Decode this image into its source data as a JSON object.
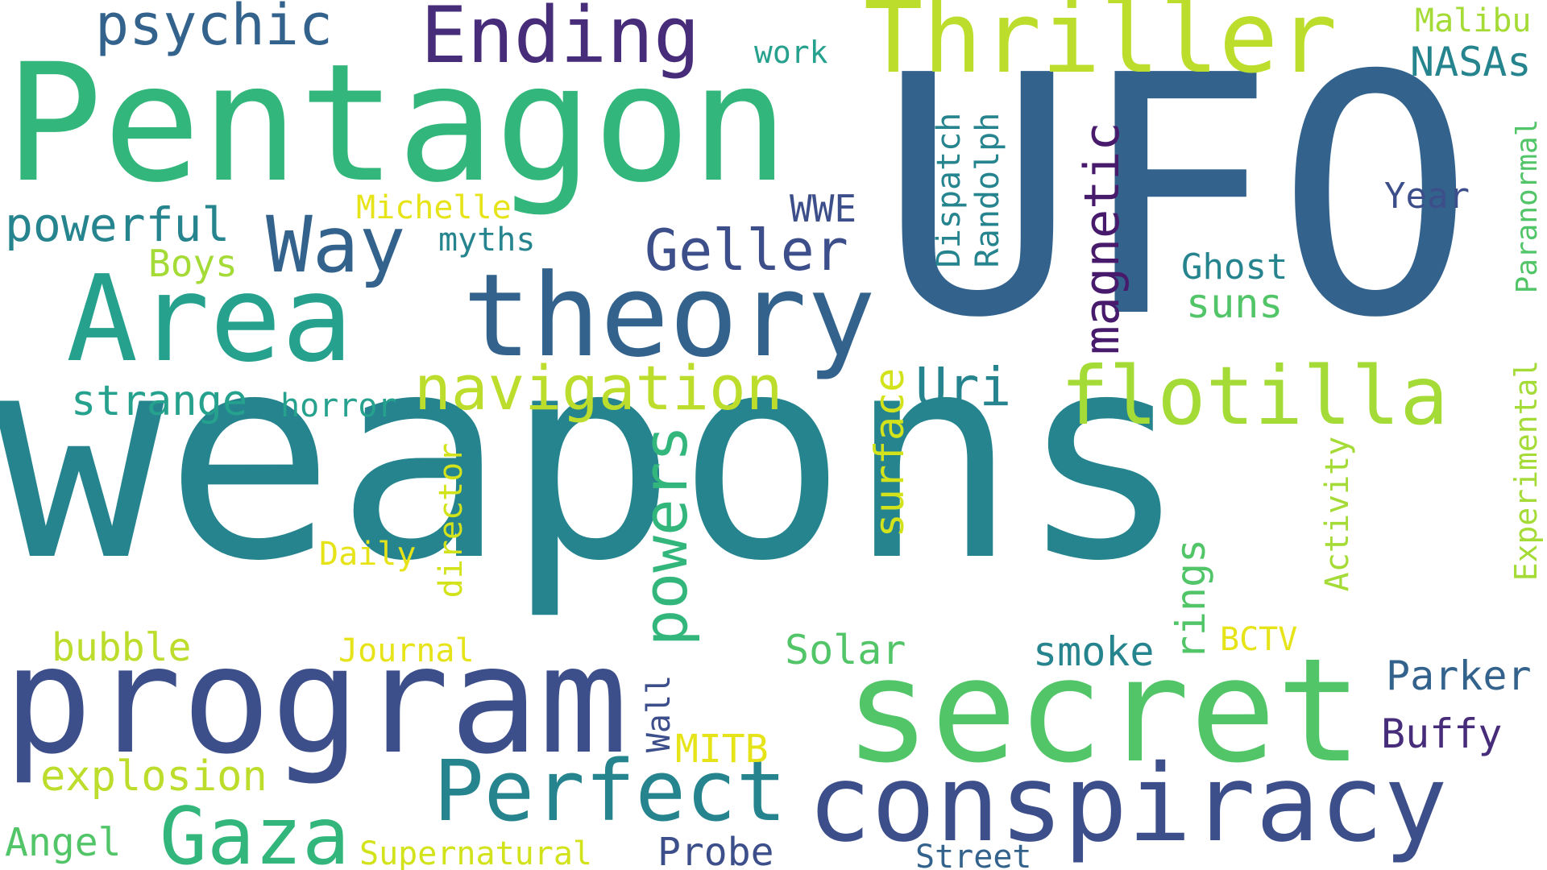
{
  "cloud": {
    "words": {
      "weapons": "weapons",
      "ufo": "UFO",
      "pentagon": "Pentagon",
      "program": "program",
      "secret": "secret",
      "conspiracy": "conspiracy",
      "area": "Area",
      "theory": "theory",
      "thriller": "Thriller",
      "perfect": "Perfect",
      "gaza": "Gaza",
      "flotilla": "flotilla",
      "ending": "Ending",
      "navigation": "navigation",
      "way": "Way",
      "psychic": "psychic",
      "powers": "powers",
      "magnetic": "magnetic",
      "geller": "Geller",
      "uri": "Uri",
      "powerful": "powerful",
      "strange": "strange",
      "surface": "surface",
      "rings": "rings",
      "parker": "Parker",
      "buffy": "Buffy",
      "solar": "Solar",
      "smoke": "smoke",
      "explosion": "explosion",
      "bubble": "bubble",
      "angel": "Angel",
      "supernatural": "Supernatural",
      "probe": "Probe",
      "street": "Street",
      "mitb": "MITB",
      "journal": "Journal",
      "daily": "Daily",
      "director": "director",
      "wall": "Wall",
      "dispatch": "Dispatch",
      "randolph": "Randolph",
      "ghost": "Ghost",
      "suns": "suns",
      "year": "Year",
      "nasas": "NASAs",
      "malibu": "Malibu",
      "paranormal": "Paranormal",
      "experimental": "Experimental",
      "activity": "Activity",
      "bctv": "BCTV",
      "wwe": "WWE",
      "myths": "myths",
      "michelle": "Michelle",
      "boys": "Boys",
      "horror": "horror",
      "work": "work"
    },
    "palette": {
      "teal": "#25848e",
      "steel": "#33638d",
      "green": "#33b67b",
      "indigo": "#3d4f8a",
      "lime": "#bcdd2b",
      "bright_green": "#53c569",
      "purple": "#472c7a",
      "dark_purple": "#481a6c",
      "yellow": "#e6e419"
    }
  }
}
